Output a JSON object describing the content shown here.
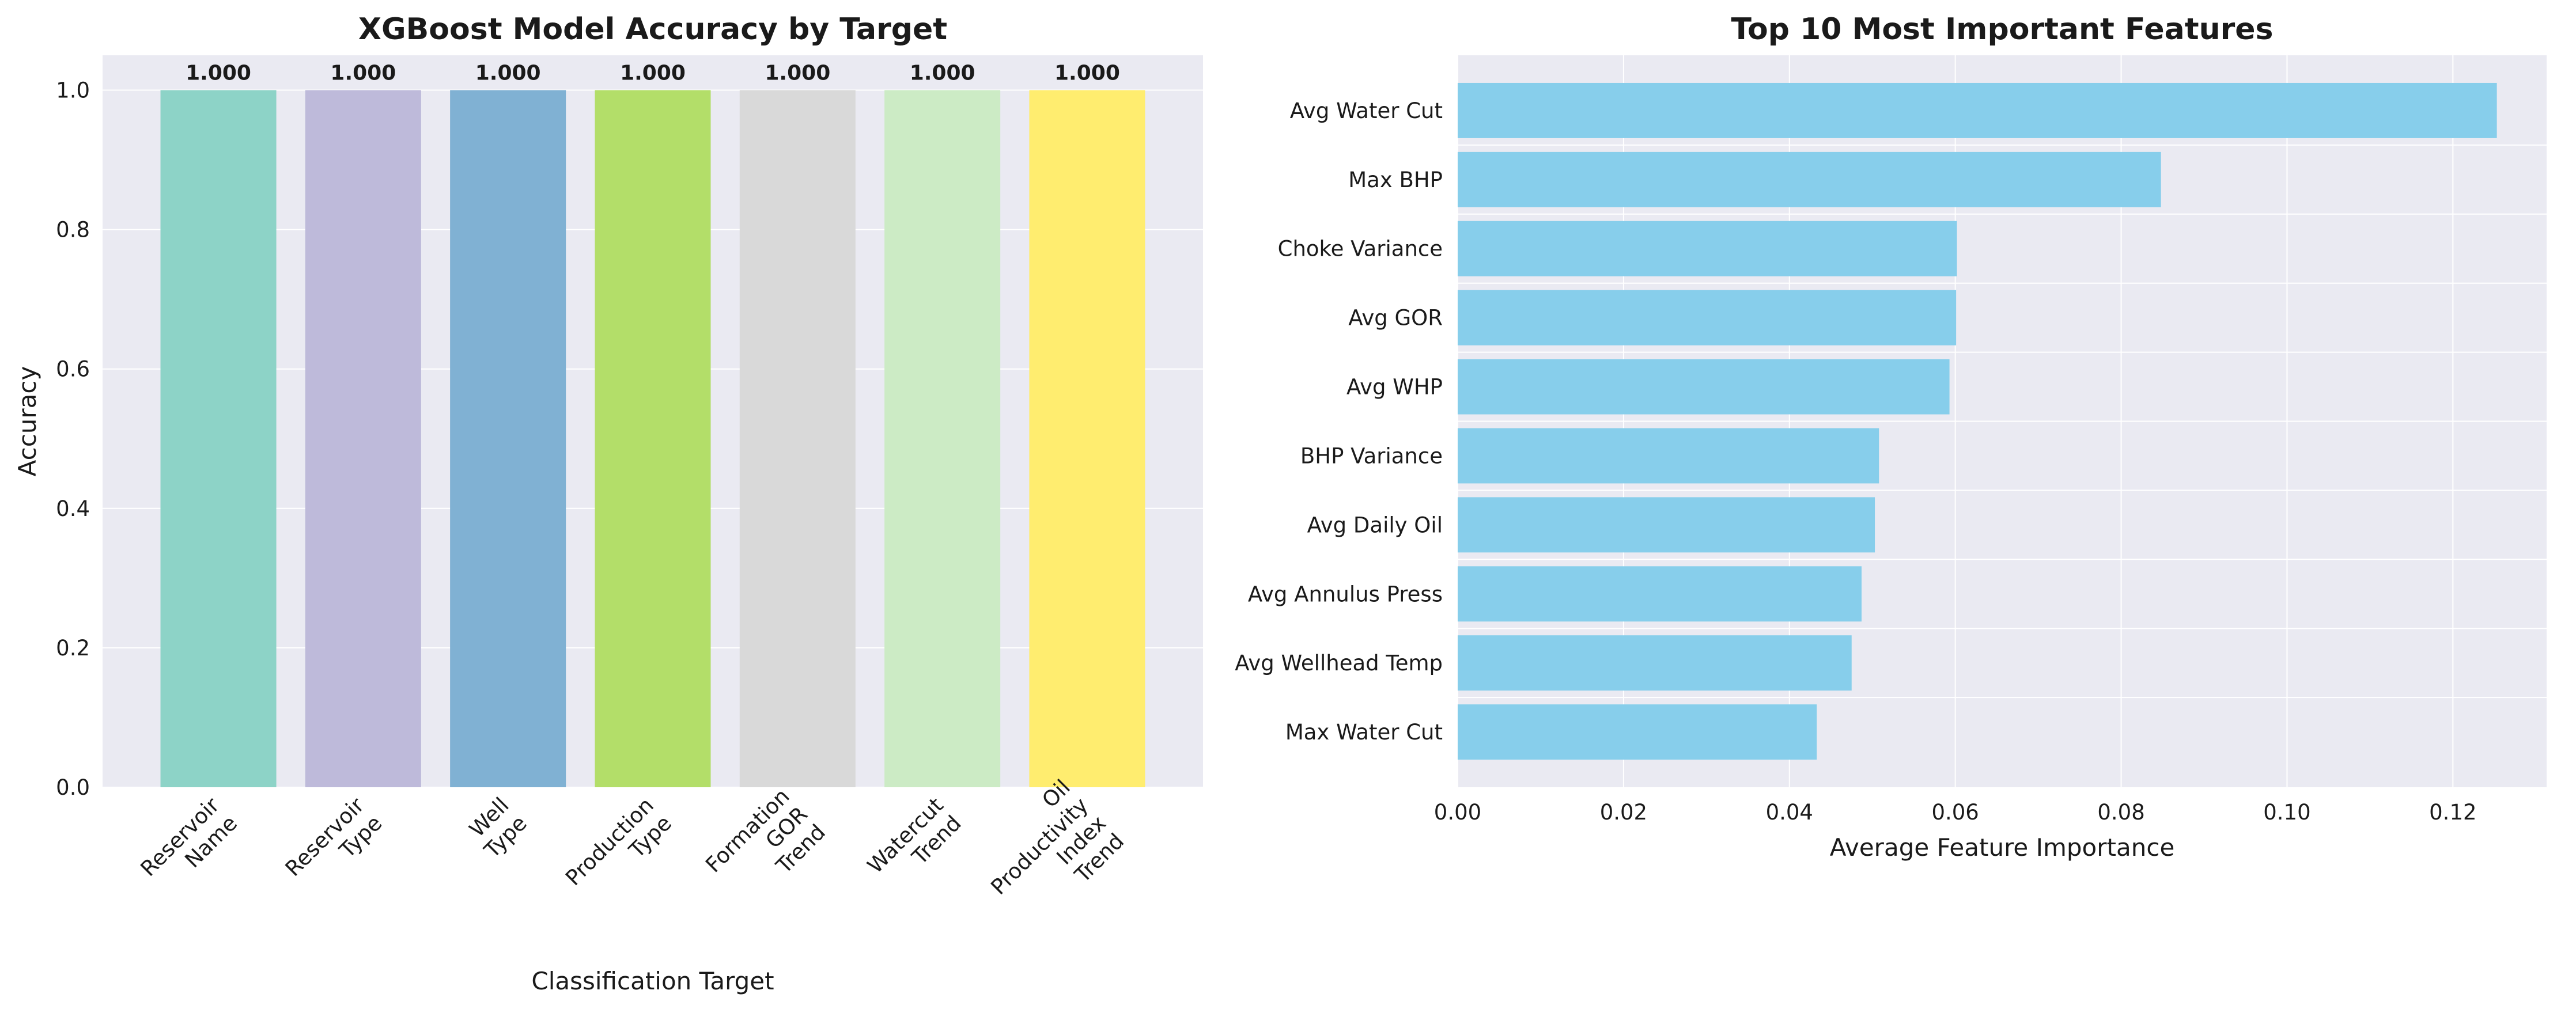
{
  "chart_data": [
    {
      "type": "bar",
      "title": "XGBoost Model Accuracy by Target",
      "xlabel": "Classification Target",
      "ylabel": "Accuracy",
      "categories": [
        [
          "Reservoir",
          "Name"
        ],
        [
          "Reservoir",
          "Type"
        ],
        [
          "Well",
          "Type"
        ],
        [
          "Production",
          "Type"
        ],
        [
          "Formation",
          "GOR",
          "Trend"
        ],
        [
          "Watercut",
          "Trend"
        ],
        [
          "Oil",
          "Productivity",
          "Index",
          "Trend"
        ]
      ],
      "values": [
        1.0,
        1.0,
        1.0,
        1.0,
        1.0,
        1.0,
        1.0
      ],
      "data_labels": [
        "1.000",
        "1.000",
        "1.000",
        "1.000",
        "1.000",
        "1.000",
        "1.000"
      ],
      "colors": [
        "#8dd3c7",
        "#bebada",
        "#80b1d3",
        "#b3de69",
        "#d9d9d9",
        "#ccebc5",
        "#ffed6f"
      ],
      "ylim": [
        0,
        1.05
      ],
      "yticks": [
        "0.0",
        "0.2",
        "0.4",
        "0.6",
        "0.8",
        "1.0"
      ],
      "grid": true,
      "background": "#eaeaf2"
    },
    {
      "type": "bar",
      "orientation": "horizontal",
      "title": "Top 10 Most Important Features",
      "xlabel": "Average Feature Importance",
      "ylabel": "",
      "categories": [
        "Avg Water Cut",
        "Max BHP",
        "Choke Variance",
        "Avg GOR",
        "Avg WHP",
        "BHP Variance",
        "Avg Daily Oil",
        "Avg Annulus Press",
        "Avg Wellhead Temp",
        "Max Water Cut"
      ],
      "values": [
        0.1253,
        0.0848,
        0.0602,
        0.0601,
        0.0593,
        0.0508,
        0.0503,
        0.0487,
        0.0475,
        0.0433
      ],
      "color": "#87ceeb",
      "xlim": [
        0,
        0.1313
      ],
      "xticks": [
        "0.00",
        "0.02",
        "0.04",
        "0.06",
        "0.08",
        "0.10",
        "0.12"
      ],
      "grid": true,
      "background": "#eaeaf2"
    }
  ]
}
